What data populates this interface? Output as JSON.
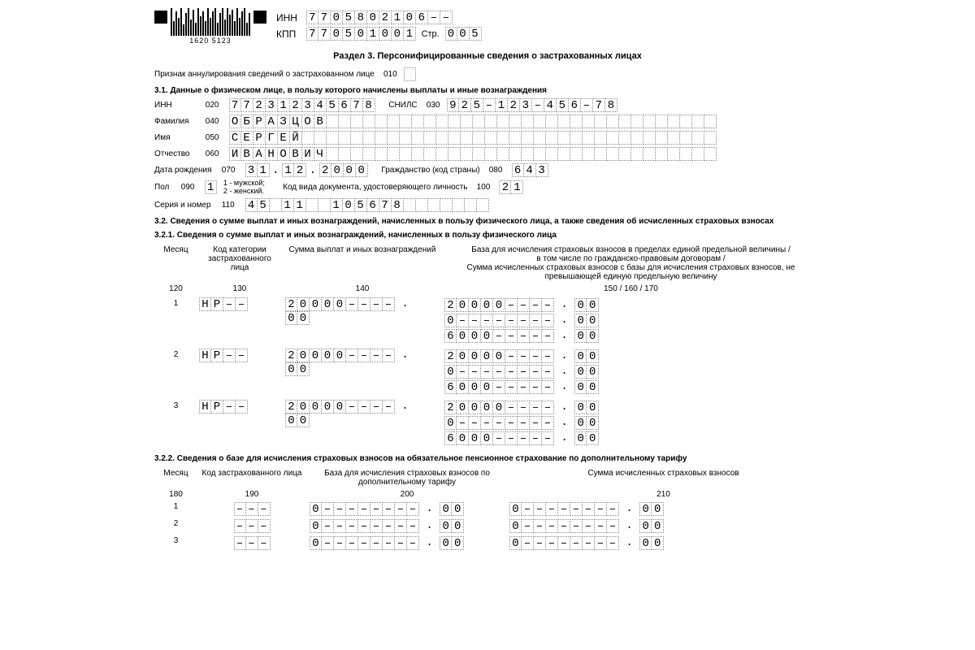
{
  "header": {
    "inn_label": "ИНН",
    "inn": [
      "7",
      "7",
      "0",
      "5",
      "8",
      "0",
      "2",
      "1",
      "0",
      "6",
      "–",
      "–"
    ],
    "kpp_label": "КПП",
    "kpp": [
      "7",
      "7",
      "0",
      "5",
      "0",
      "1",
      "0",
      "0",
      "1"
    ],
    "str_label": "Стр.",
    "str": [
      "0",
      "0",
      "5"
    ],
    "barcode_num": "1620   5123"
  },
  "section_title": "Раздел 3. Персонифицированные сведения о застрахованных лицах",
  "annul": {
    "label": "Признак аннулирования сведений о застрахованном лице",
    "code": "010",
    "cells": [
      ""
    ]
  },
  "s31_title": "3.1. Данные о физическом лице, в пользу которого начислены выплаты и иные вознаграждения",
  "p": {
    "inn": {
      "label": "ИНН",
      "code": "020",
      "cells": [
        "7",
        "7",
        "2",
        "3",
        "1",
        "2",
        "3",
        "4",
        "5",
        "6",
        "7",
        "8"
      ]
    },
    "snils": {
      "label": "СНИЛС",
      "code": "030",
      "cells": [
        "9",
        "2",
        "5",
        "–",
        "1",
        "2",
        "3",
        "–",
        "4",
        "5",
        "6",
        "–",
        "7",
        "8"
      ]
    },
    "fam": {
      "label": "Фамилия",
      "code": "040",
      "cells": [
        "О",
        "Б",
        "Р",
        "А",
        "З",
        "Ц",
        "О",
        "В",
        "",
        "",
        "",
        "",
        "",
        "",
        "",
        "",
        "",
        "",
        "",
        "",
        "",
        "",
        "",
        "",
        "",
        "",
        "",
        "",
        "",
        "",
        "",
        "",
        "",
        "",
        "",
        "",
        "",
        "",
        "",
        ""
      ]
    },
    "name": {
      "label": "Имя",
      "code": "050",
      "cells": [
        "С",
        "Е",
        "Р",
        "Г",
        "Е",
        "Й",
        "",
        "",
        "",
        "",
        "",
        "",
        "",
        "",
        "",
        "",
        "",
        "",
        "",
        "",
        "",
        "",
        "",
        "",
        "",
        "",
        "",
        "",
        "",
        "",
        "",
        "",
        "",
        "",
        "",
        "",
        "",
        "",
        "",
        ""
      ]
    },
    "otch": {
      "label": "Отчество",
      "code": "060",
      "cells": [
        "И",
        "В",
        "А",
        "Н",
        "О",
        "В",
        "И",
        "Ч",
        "",
        "",
        "",
        "",
        "",
        "",
        "",
        "",
        "",
        "",
        "",
        "",
        "",
        "",
        "",
        "",
        "",
        "",
        "",
        "",
        "",
        "",
        "",
        "",
        "",
        "",
        "",
        "",
        "",
        "",
        "",
        ""
      ]
    },
    "dob": {
      "label": "Дата рождения",
      "code": "070",
      "dd": [
        "3",
        "1"
      ],
      "mm": [
        "1",
        "2"
      ],
      "yyyy": [
        "2",
        "0",
        "0",
        "0"
      ]
    },
    "citiz": {
      "label": "Гражданство (код страны)",
      "code": "080",
      "cells": [
        "6",
        "4",
        "3"
      ]
    },
    "sex": {
      "label": "Пол",
      "code": "090",
      "cells": [
        "1"
      ],
      "hint1": "1 - мужской;",
      "hint2": "2 - женский."
    },
    "doc": {
      "label": "Код вида документа, удостоверяющего личность",
      "code": "100",
      "cells": [
        "2",
        "1"
      ]
    },
    "ser": {
      "label": "Серия и номер",
      "code": "110",
      "cells": [
        "4",
        "5",
        "",
        "1",
        "1",
        "",
        "",
        "1",
        "0",
        "5",
        "6",
        "7",
        "8",
        "",
        "",
        "",
        "",
        "",
        "",
        ""
      ]
    }
  },
  "s32_title": "3.2. Сведения о сумме выплат и иных вознаграждений, начисленных в пользу физического лица, а также сведения об исчисленных страховых взносах",
  "s321_title": "3.2.1. Сведения о сумме выплат и иных вознаграждений, начисленных в пользу физического лица",
  "s321_head": {
    "c1": "Месяц",
    "c2": "Код категории застрахованного лица",
    "c3": "Сумма выплат и иных вознаграждений",
    "c4": "База для исчисления страховых взносов в пределах единой предельной величины /\nв том числе по гражданско-правовым договорам /\nСумма исчисленных страховых взносов с базы для исчисления страховых взносов, не превышающей единую предельную величину",
    "n1": "120",
    "n2": "130",
    "n3": "140",
    "n4": "150 / 160 / 170"
  },
  "s321_rows": [
    {
      "m": "1",
      "cat": [
        "Н",
        "Р",
        "–",
        "–"
      ],
      "sum": {
        "int": [
          "2",
          "0",
          "0",
          "0",
          "0",
          "–",
          "–",
          "–",
          "–"
        ],
        "dec": [
          "0",
          "0"
        ]
      },
      "base": [
        {
          "int": [
            "2",
            "0",
            "0",
            "0",
            "0",
            "–",
            "–",
            "–",
            "–"
          ],
          "dec": [
            "0",
            "0"
          ]
        },
        {
          "int": [
            "0",
            "–",
            "–",
            "–",
            "–",
            "–",
            "–",
            "–",
            "–"
          ],
          "dec": [
            "0",
            "0"
          ]
        },
        {
          "int": [
            "6",
            "0",
            "0",
            "0",
            "–",
            "–",
            "–",
            "–",
            "–"
          ],
          "dec": [
            "0",
            "0"
          ]
        }
      ]
    },
    {
      "m": "2",
      "cat": [
        "Н",
        "Р",
        "–",
        "–"
      ],
      "sum": {
        "int": [
          "2",
          "0",
          "0",
          "0",
          "0",
          "–",
          "–",
          "–",
          "–"
        ],
        "dec": [
          "0",
          "0"
        ]
      },
      "base": [
        {
          "int": [
            "2",
            "0",
            "0",
            "0",
            "0",
            "–",
            "–",
            "–",
            "–"
          ],
          "dec": [
            "0",
            "0"
          ]
        },
        {
          "int": [
            "0",
            "–",
            "–",
            "–",
            "–",
            "–",
            "–",
            "–",
            "–"
          ],
          "dec": [
            "0",
            "0"
          ]
        },
        {
          "int": [
            "6",
            "0",
            "0",
            "0",
            "–",
            "–",
            "–",
            "–",
            "–"
          ],
          "dec": [
            "0",
            "0"
          ]
        }
      ]
    },
    {
      "m": "3",
      "cat": [
        "Н",
        "Р",
        "–",
        "–"
      ],
      "sum": {
        "int": [
          "2",
          "0",
          "0",
          "0",
          "0",
          "–",
          "–",
          "–",
          "–"
        ],
        "dec": [
          "0",
          "0"
        ]
      },
      "base": [
        {
          "int": [
            "2",
            "0",
            "0",
            "0",
            "0",
            "–",
            "–",
            "–",
            "–"
          ],
          "dec": [
            "0",
            "0"
          ]
        },
        {
          "int": [
            "0",
            "–",
            "–",
            "–",
            "–",
            "–",
            "–",
            "–",
            "–"
          ],
          "dec": [
            "0",
            "0"
          ]
        },
        {
          "int": [
            "6",
            "0",
            "0",
            "0",
            "–",
            "–",
            "–",
            "–",
            "–"
          ],
          "dec": [
            "0",
            "0"
          ]
        }
      ]
    }
  ],
  "s322_title": "3.2.2. Сведения о базе для исчисления страховых взносов на обязательное пенсионное страхование по дополнительному тарифу",
  "s322_head": {
    "c1": "Месяц",
    "c2": "Код застрахованного лица",
    "c3": "База для исчисления страховых взносов по дополнительному тарифу",
    "c4": "Сумма исчисленных страховых взносов",
    "n1": "180",
    "n2": "190",
    "n3": "200",
    "n4": "210"
  },
  "s322_rows": [
    {
      "m": "1",
      "cat": [
        "–",
        "–",
        "–"
      ],
      "b": {
        "int": [
          "0",
          "–",
          "–",
          "–",
          "–",
          "–",
          "–",
          "–",
          "–"
        ],
        "dec": [
          "0",
          "0"
        ]
      },
      "s": {
        "int": [
          "0",
          "–",
          "–",
          "–",
          "–",
          "–",
          "–",
          "–",
          "–"
        ],
        "dec": [
          "0",
          "0"
        ]
      }
    },
    {
      "m": "2",
      "cat": [
        "–",
        "–",
        "–"
      ],
      "b": {
        "int": [
          "0",
          "–",
          "–",
          "–",
          "–",
          "–",
          "–",
          "–",
          "–"
        ],
        "dec": [
          "0",
          "0"
        ]
      },
      "s": {
        "int": [
          "0",
          "–",
          "–",
          "–",
          "–",
          "–",
          "–",
          "–",
          "–"
        ],
        "dec": [
          "0",
          "0"
        ]
      }
    },
    {
      "m": "3",
      "cat": [
        "–",
        "–",
        "–"
      ],
      "b": {
        "int": [
          "0",
          "–",
          "–",
          "–",
          "–",
          "–",
          "–",
          "–",
          "–"
        ],
        "dec": [
          "0",
          "0"
        ]
      },
      "s": {
        "int": [
          "0",
          "–",
          "–",
          "–",
          "–",
          "–",
          "–",
          "–",
          "–"
        ],
        "dec": [
          "0",
          "0"
        ]
      }
    }
  ]
}
